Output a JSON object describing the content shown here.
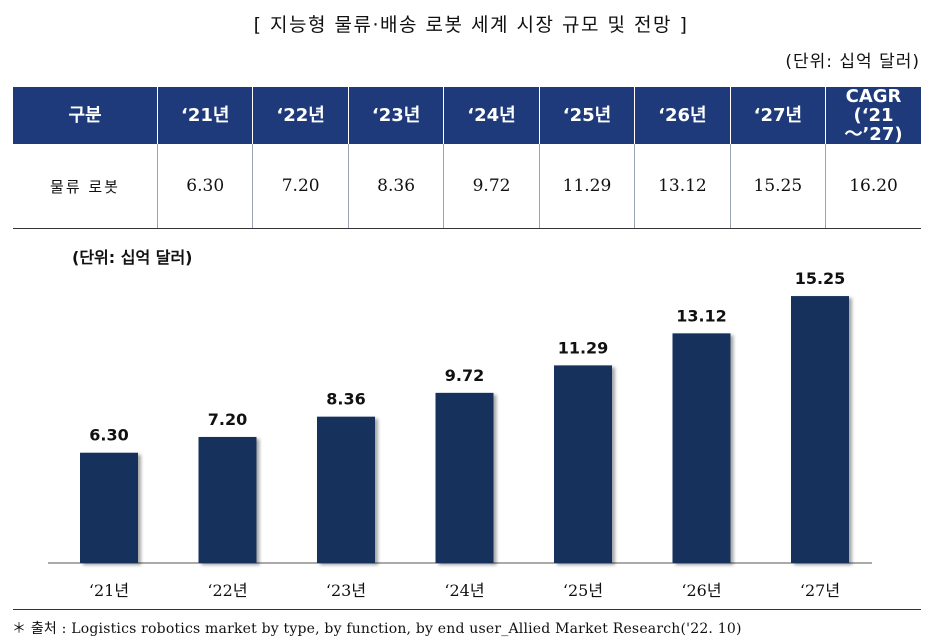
{
  "title": "[ 지능형 물류·배송 로봇 세계 시장 규모 및 전망 ]",
  "table_unit": "(단위: 십억 달러)",
  "table": {
    "headers": [
      "구분",
      "‘21년",
      "‘22년",
      "‘23년",
      "‘24년",
      "‘25년",
      "‘26년",
      "‘27년",
      "CAGR\n(‘21～’27)"
    ],
    "rows": [
      [
        "물류 로봇",
        "6.30",
        "7.20",
        "8.36",
        "9.72",
        "11.29",
        "13.12",
        "15.25",
        "16.20"
      ]
    ]
  },
  "chart_data": {
    "type": "bar",
    "title": "",
    "unit_label": "(단위: 십억 달러)",
    "categories": [
      "‘21년",
      "‘22년",
      "‘23년",
      "‘24년",
      "‘25년",
      "‘26년",
      "‘27년"
    ],
    "values": [
      6.3,
      7.2,
      8.36,
      9.72,
      11.29,
      13.12,
      15.25
    ],
    "value_labels": [
      "6.30",
      "7.20",
      "8.36",
      "9.72",
      "11.29",
      "13.12",
      "15.25"
    ],
    "ylim": [
      0,
      17
    ],
    "bar_color": "#17325c",
    "grid": false,
    "legend": "none"
  },
  "source": "＊ 출처 : Logistics robotics market by type, by function, by end user_Allied Market Research('22. 10)"
}
